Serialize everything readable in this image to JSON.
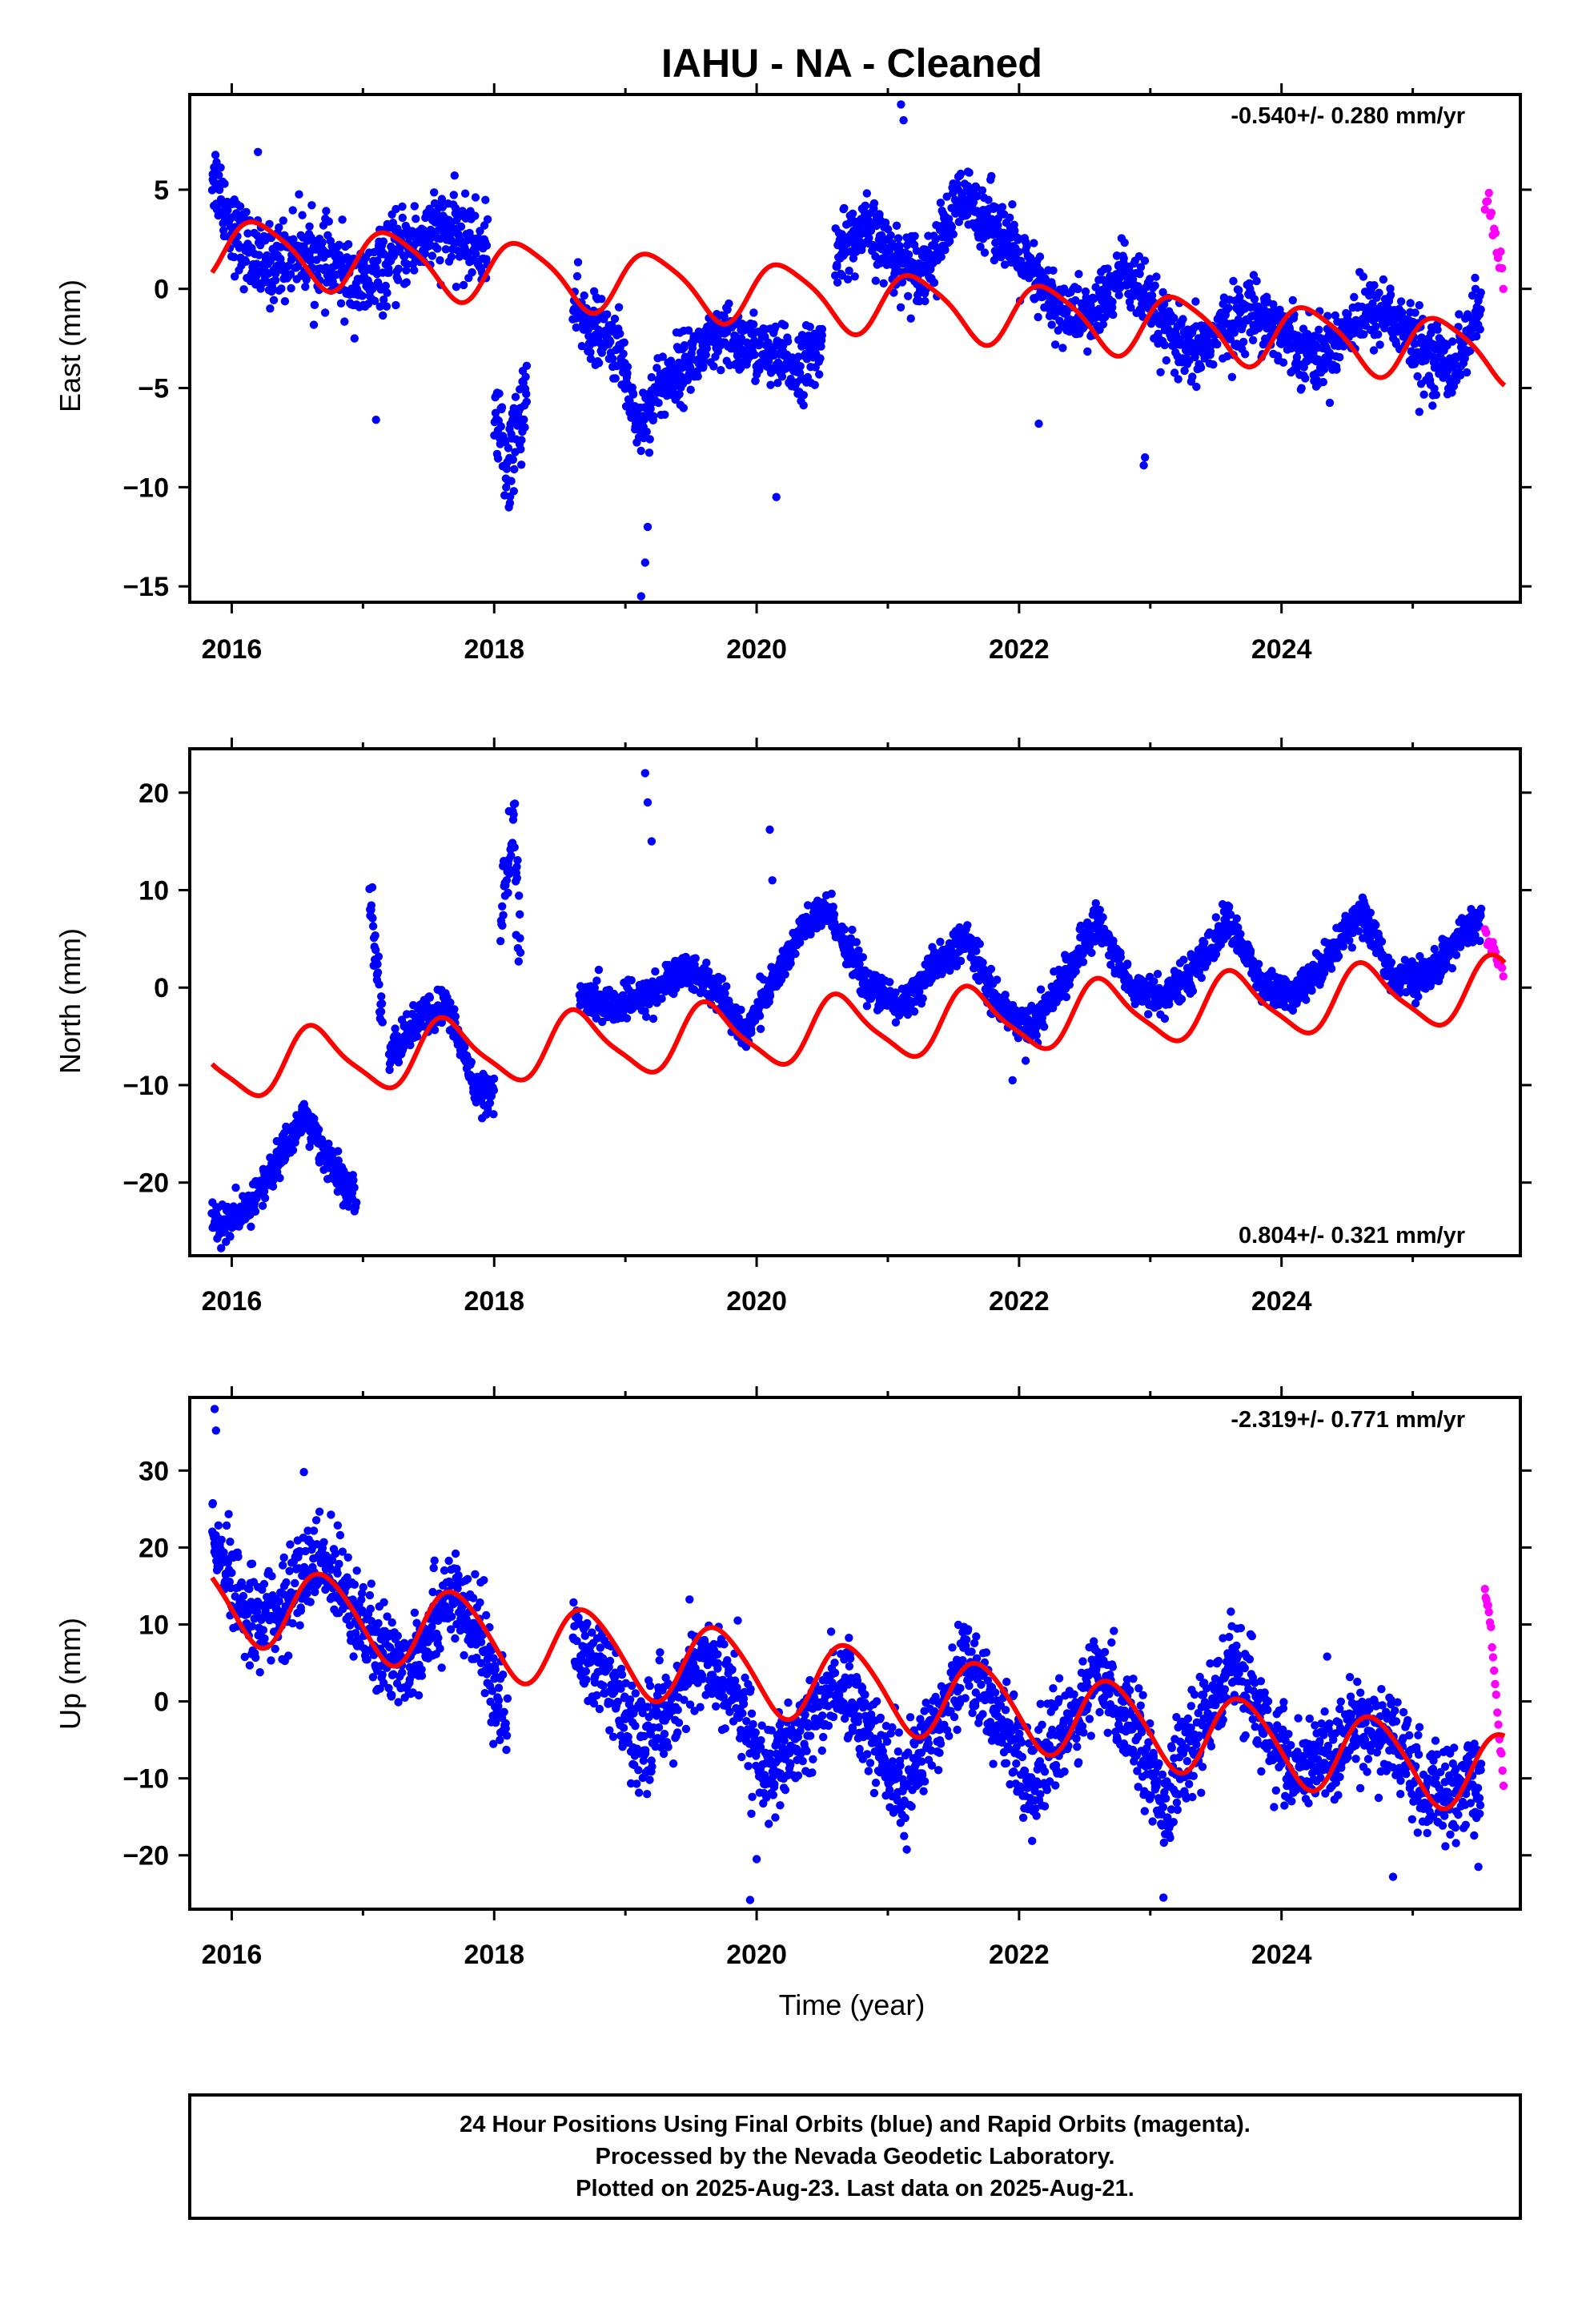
{
  "title": "IAHU  - NA - Cleaned",
  "xlabel": "Time (year)",
  "caption": {
    "line1": "24 Hour Positions Using Final Orbits (blue) and Rapid Orbits (magenta).",
    "line2": "Processed by the Nevada Geodetic Laboratory.",
    "line3": "Plotted on 2025-Aug-23. Last data on 2025-Aug-21."
  },
  "colors": {
    "final": "#0000ff",
    "rapid": "#ff00ff",
    "model": "#ff0000",
    "frame": "#000000"
  },
  "chart_data": [
    {
      "type": "scatter",
      "component": "east",
      "ylabel": "East (mm)",
      "rate_label": "-0.540+/- 0.280 mm/yr",
      "rate_position": "top-right",
      "xlim": [
        2015.68,
        2025.82
      ],
      "ylim": [
        -15.8,
        9.8
      ],
      "xticks": [
        2016,
        2018,
        2020,
        2022,
        2024
      ],
      "xtick_labels": [
        "2016",
        "2018",
        "2020",
        "2022",
        "2024"
      ],
      "yticks": [
        -15,
        -10,
        -5,
        0,
        5
      ],
      "ytick_labels": [
        "−15",
        "−10",
        "−5",
        "0",
        "5"
      ],
      "model": {
        "offset": 2.0,
        "slope": -0.54,
        "t0": 2016.0,
        "annual_cos": 0.3,
        "annual_sin": 1.5,
        "semi_cos": 0.25,
        "semi_sin": 0.15
      },
      "final_orbits_segments": [
        {
          "x": [
            2015.85,
            2016.05,
            2016.25,
            2016.5,
            2016.8,
            2017.0,
            2017.3,
            2017.6,
            2017.95
          ],
          "y": [
            6.0,
            2.5,
            1.0,
            2.0,
            1.0,
            0.0,
            2.0,
            3.0,
            2.0
          ],
          "noise": 1.3
        },
        {
          "x": [
            2018.0,
            2018.1,
            2018.25
          ],
          "y": [
            -6.0,
            -9.0,
            -5.0
          ],
          "noise": 1.5
        },
        {
          "x": [
            2018.6,
            2018.75,
            2018.95,
            2019.1,
            2019.25,
            2019.5,
            2019.75,
            2020.0,
            2020.3,
            2020.5
          ],
          "y": [
            -1.0,
            -2.0,
            -3.0,
            -7.0,
            -5.0,
            -3.5,
            -2.5,
            -3.0,
            -4.0,
            -3.0
          ],
          "noise": 1.1
        },
        {
          "x": [
            2020.6,
            2020.85,
            2021.05,
            2021.3,
            2021.55,
            2021.8,
            2022.05,
            2022.3,
            2022.55,
            2022.8,
            2023.05,
            2023.3,
            2023.55,
            2023.8,
            2024.05,
            2024.3,
            2024.55,
            2024.8,
            2025.05,
            2025.3,
            2025.52
          ],
          "y": [
            2.0,
            3.0,
            1.5,
            1.0,
            4.5,
            3.5,
            1.0,
            -1.0,
            -1.5,
            1.0,
            -1.5,
            -3.5,
            -2.0,
            -1.0,
            -2.5,
            -3.5,
            -1.5,
            -1.0,
            -3.0,
            -4.0,
            -1.0
          ],
          "noise": 1.1
        }
      ],
      "final_orbits_outliers": {
        "x": [
          2016.2,
          2017.1,
          2018.12,
          2018.15,
          2019.12,
          2019.15,
          2019.17,
          2020.15,
          2021.1,
          2021.12,
          2022.15,
          2022.95,
          2022.96,
          2025.05
        ],
        "y": [
          6.9,
          -6.6,
          -10.8,
          -10.2,
          -15.5,
          -13.8,
          -12.0,
          -10.5,
          9.3,
          8.5,
          -6.8,
          -8.9,
          -8.5,
          -6.2
        ]
      },
      "rapid_orbits": {
        "x": [
          2025.55,
          2025.6,
          2025.65,
          2025.7
        ],
        "y": [
          4.5,
          3.5,
          1.5,
          0.0
        ]
      }
    },
    {
      "type": "scatter",
      "component": "north",
      "ylabel": "North (mm)",
      "rate_label": "0.804+/- 0.321 mm/yr",
      "rate_position": "bottom-right",
      "xlim": [
        2015.68,
        2025.82
      ],
      "ylim": [
        -27.5,
        24.5
      ],
      "xticks": [
        2016,
        2018,
        2020,
        2022,
        2024
      ],
      "xtick_labels": [
        "2016",
        "2018",
        "2020",
        "2022",
        "2024"
      ],
      "yticks": [
        -20,
        -10,
        0,
        10,
        20
      ],
      "ytick_labels": [
        "−20",
        "−10",
        "0",
        "10",
        "20"
      ],
      "model": {
        "offset": -8.0,
        "slope": 0.804,
        "t0": 2016.0,
        "annual_cos": -2.0,
        "annual_sin": -2.5,
        "semi_cos": 0.6,
        "semi_sin": 0.4
      },
      "final_orbits_segments": [
        {
          "x": [
            2015.85,
            2016.05,
            2016.3,
            2016.55,
            2016.75,
            2016.95
          ],
          "y": [
            -24.0,
            -24.0,
            -19.0,
            -13.0,
            -18.0,
            -22.0
          ],
          "noise": 1.3
        },
        {
          "x": [
            2017.05,
            2017.1,
            2017.15
          ],
          "y": [
            10.0,
            3.0,
            -4.0
          ],
          "noise": 1.8
        },
        {
          "x": [
            2017.2,
            2017.45,
            2017.65,
            2017.85,
            2018.0
          ],
          "y": [
            -7.0,
            -3.0,
            -2.0,
            -10.0,
            -11.0
          ],
          "noise": 1.3
        },
        {
          "x": [
            2018.05,
            2018.15,
            2018.2
          ],
          "y": [
            8.0,
            16.0,
            5.0
          ],
          "noise": 3.0
        },
        {
          "x": [
            2018.65,
            2018.9,
            2019.15,
            2019.45,
            2019.7,
            2019.9,
            2020.1,
            2020.35,
            2020.55,
            2020.85,
            2021.1,
            2021.35,
            2021.6,
            2021.85,
            2022.1,
            2022.35,
            2022.6,
            2022.85,
            2023.1,
            2023.35,
            2023.6,
            2023.85,
            2024.1,
            2024.35,
            2024.6,
            2024.85,
            2025.1,
            2025.35,
            2025.52
          ],
          "y": [
            -1.0,
            -2.0,
            -1.0,
            2.0,
            0.0,
            -5.0,
            0.0,
            6.0,
            8.0,
            0.0,
            -2.0,
            2.0,
            5.0,
            -2.0,
            -4.0,
            1.0,
            7.0,
            0.0,
            -1.0,
            2.0,
            7.0,
            0.0,
            -1.0,
            3.0,
            8.0,
            1.0,
            1.0,
            5.0,
            7.0
          ],
          "noise": 1.2
        }
      ],
      "final_orbits_outliers": {
        "x": [
          2019.15,
          2019.17,
          2019.2,
          2020.1,
          2020.12,
          2021.95,
          2022.05
        ],
        "y": [
          22.0,
          19.0,
          15.0,
          16.2,
          11.0,
          -9.5,
          -7.5
        ]
      },
      "rapid_orbits": {
        "x": [
          2025.55,
          2025.6,
          2025.65,
          2025.7
        ],
        "y": [
          6.0,
          4.0,
          2.5,
          1.5
        ]
      }
    },
    {
      "type": "scatter",
      "component": "up",
      "ylabel": "Up (mm)",
      "rate_label": "-2.319+/- 0.771 mm/yr",
      "rate_position": "top-right",
      "xlim": [
        2015.68,
        2025.82
      ],
      "ylim": [
        -27.0,
        39.5
      ],
      "xticks": [
        2016,
        2018,
        2020,
        2022,
        2024
      ],
      "xtick_labels": [
        "2016",
        "2018",
        "2020",
        "2022",
        "2024"
      ],
      "yticks": [
        -20,
        -10,
        0,
        10,
        20,
        30
      ],
      "ytick_labels": [
        "−20",
        "−10",
        "0",
        "10",
        "20",
        "30"
      ],
      "model": {
        "offset": 13.0,
        "slope": -2.319,
        "t0": 2016.0,
        "annual_cos": -1.5,
        "annual_sin": -5.0,
        "semi_cos": 0.5,
        "semi_sin": 0.3
      },
      "final_orbits_segments": [
        {
          "x": [
            2015.85,
            2016.1,
            2016.35,
            2016.6,
            2016.85,
            2017.1,
            2017.35,
            2017.65,
            2017.9,
            2018.1
          ],
          "y": [
            20.0,
            12.0,
            11.0,
            18.0,
            16.0,
            6.0,
            5.0,
            14.0,
            8.0,
            -3.0
          ],
          "noise": 4.0
        },
        {
          "x": [
            2018.6,
            2018.85,
            2019.1,
            2019.35,
            2019.6,
            2019.85,
            2020.1,
            2020.35,
            2020.6,
            2020.85,
            2021.1,
            2021.35,
            2021.6,
            2021.85,
            2022.1,
            2022.35,
            2022.6,
            2022.85,
            2023.1,
            2023.35,
            2023.6,
            2023.85,
            2024.1,
            2024.35,
            2024.6,
            2024.85,
            2025.1,
            2025.35,
            2025.52
          ],
          "y": [
            8.0,
            3.0,
            -6.0,
            0.0,
            6.0,
            0.0,
            -10.0,
            -5.0,
            3.0,
            -3.0,
            -12.0,
            -3.0,
            6.0,
            -3.0,
            -10.0,
            -4.0,
            3.0,
            -2.0,
            -13.0,
            -5.0,
            5.0,
            -2.0,
            -10.0,
            -7.0,
            -3.0,
            -5.0,
            -12.0,
            -12.0,
            -10.0
          ],
          "noise": 4.0
        }
      ],
      "final_orbits_outliers": {
        "x": [
          2015.87,
          2015.88,
          2016.55,
          2019.95,
          2020.0,
          2023.1,
          2024.85,
          2025.5
        ],
        "y": [
          38.0,
          35.2,
          29.8,
          -25.8,
          -20.5,
          -25.5,
          -22.8,
          -21.5
        ]
      },
      "rapid_orbits": {
        "x": [
          2025.55,
          2025.58,
          2025.62,
          2025.66,
          2025.7
        ],
        "y": [
          14.5,
          11.5,
          4.5,
          -5.0,
          -12.0
        ]
      }
    }
  ]
}
